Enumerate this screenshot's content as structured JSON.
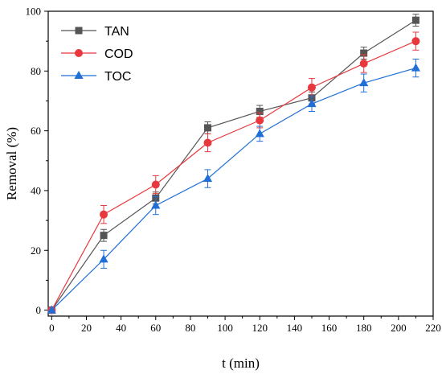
{
  "chart_data": {
    "type": "line",
    "xlabel": "t (min)",
    "ylabel": "Removal (%)",
    "xlim": [
      -2,
      220
    ],
    "ylim": [
      -2,
      100
    ],
    "x_ticks": [
      0,
      20,
      40,
      60,
      80,
      100,
      120,
      140,
      160,
      180,
      200,
      220
    ],
    "y_ticks": [
      0,
      20,
      40,
      60,
      80,
      100
    ],
    "legend_position": "top-left",
    "grid": false,
    "x": [
      0,
      30,
      60,
      90,
      120,
      150,
      180,
      210
    ],
    "series": [
      {
        "name": "TAN",
        "marker": "square",
        "color": "#555555",
        "values": [
          0,
          25,
          37.5,
          61,
          66.5,
          71,
          86,
          97
        ],
        "errors": [
          0,
          2,
          2,
          2,
          2,
          2,
          2,
          2
        ]
      },
      {
        "name": "COD",
        "marker": "circle",
        "color": "#e8383d",
        "values": [
          0,
          32,
          42,
          56,
          63.5,
          74.5,
          82.5,
          90
        ],
        "errors": [
          0,
          3,
          3,
          3,
          2.5,
          3,
          3,
          3
        ]
      },
      {
        "name": "TOC",
        "marker": "triangle",
        "color": "#1f6fd6",
        "values": [
          0,
          17,
          35,
          44,
          59,
          69,
          76,
          81
        ],
        "errors": [
          0,
          3,
          3,
          3,
          2.5,
          2.5,
          3,
          3
        ]
      }
    ]
  }
}
